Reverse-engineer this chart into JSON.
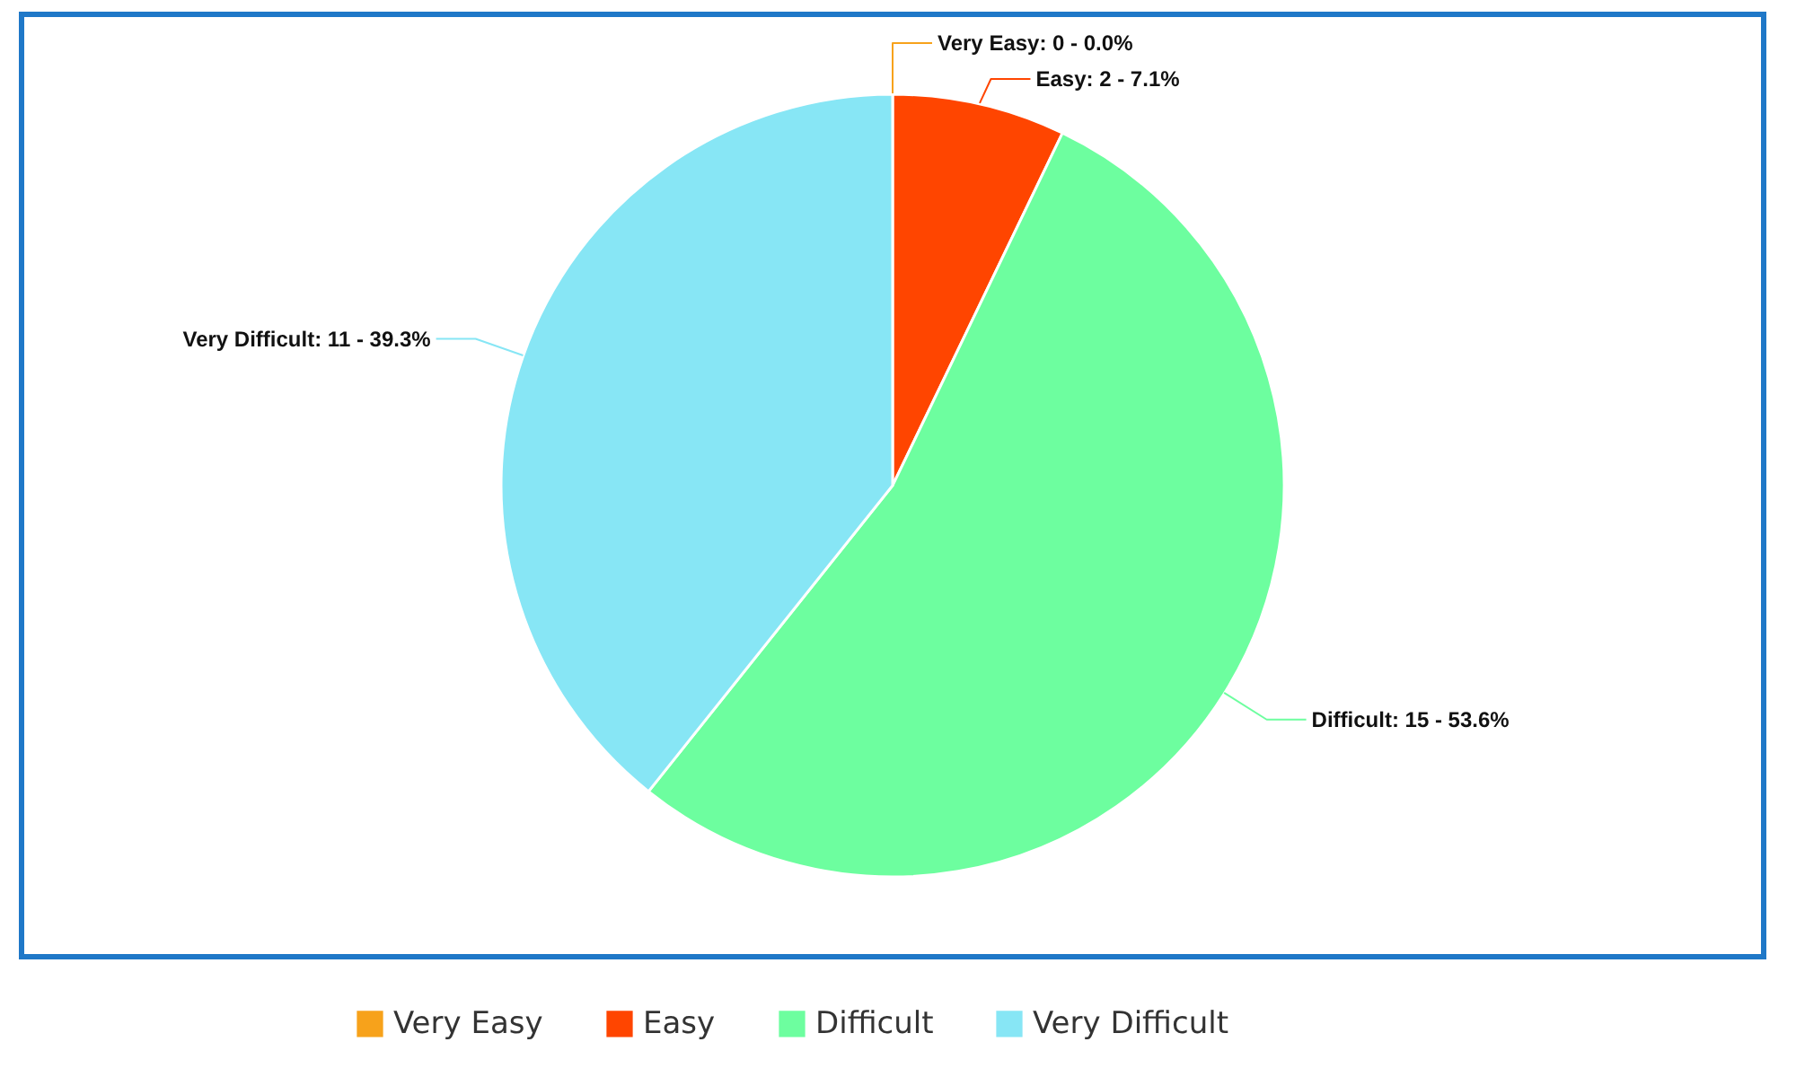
{
  "chart_data": {
    "type": "pie",
    "categories": [
      "Very Easy",
      "Easy",
      "Difficult",
      "Very Difficult"
    ],
    "values": [
      0,
      2,
      15,
      11
    ],
    "colors": [
      "#f7a21b",
      "#ff4500",
      "#6dfe9f",
      "#87e6f5"
    ],
    "value_labels": [
      "Very Easy: 0 - 0.0%",
      "Easy: 2 - 7.1%",
      "Difficult: 15 - 53.6%",
      "Very Difficult: 11 - 39.3%"
    ],
    "legend": "bottom"
  }
}
